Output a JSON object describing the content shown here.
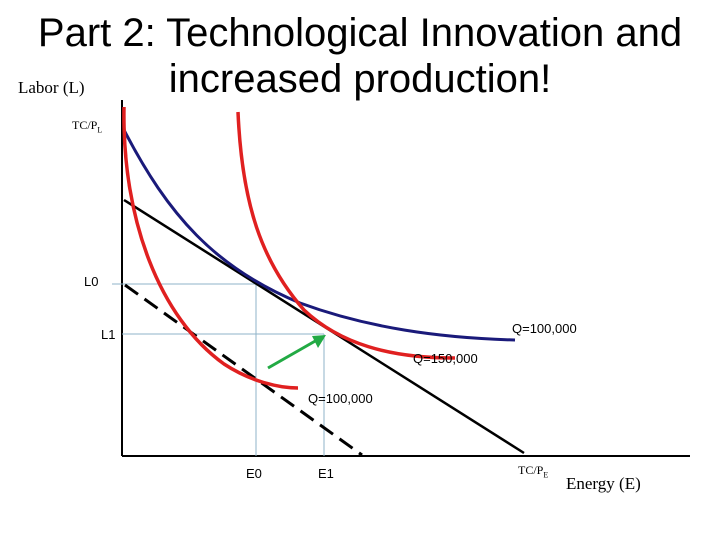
{
  "title": {
    "line1": "Part 2: Technological Innovation and",
    "line2": "increased production!"
  },
  "axes": {
    "y_label": "Labor (L)",
    "x_label": "Energy (E)",
    "y_intercept_label": "TC/P",
    "y_intercept_sub": "L",
    "x_intercept_label": "TC/P",
    "x_intercept_sub": "E"
  },
  "markers": {
    "L0": "L0",
    "L1": "L1",
    "E0": "E0",
    "E1": "E1"
  },
  "curve_labels": {
    "isoquant_blue": "Q=100,000",
    "isoquant_red_outer": "Q=150,000",
    "isoquant_red_inner": "Q=100,000"
  },
  "colors": {
    "blue_isoquant": "#1a1a7a",
    "red_isoquant": "#e02020",
    "isocost": "#000000",
    "arrow": "#22aa44",
    "guide": "#8fb3c9"
  }
}
